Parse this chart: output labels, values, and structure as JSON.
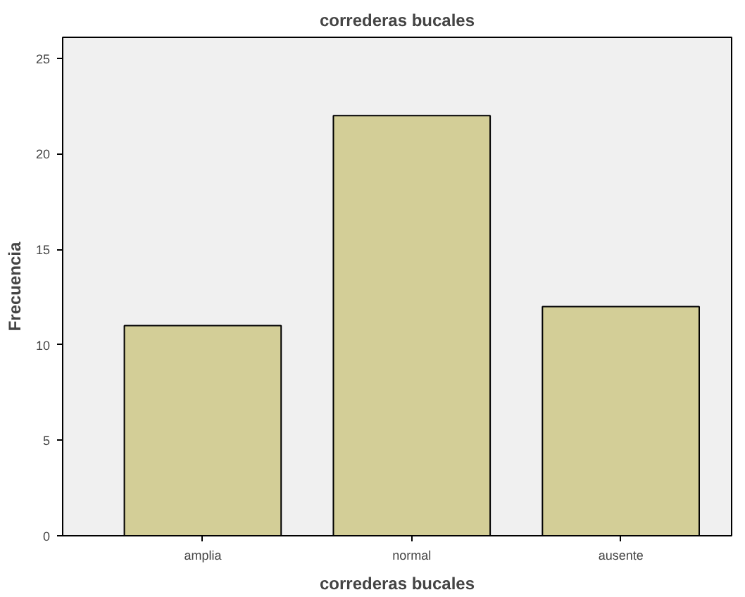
{
  "chart_data": {
    "type": "bar",
    "title": "correderas bucales",
    "xlabel": "correderas bucales",
    "ylabel": "Frecuencia",
    "categories": [
      "amplia",
      "normal",
      "ausente"
    ],
    "values": [
      11,
      22,
      12
    ],
    "color": "#d3ce97",
    "ylim": [
      0,
      26.1
    ],
    "yticks": [
      0,
      5,
      10,
      15,
      20,
      25
    ],
    "grid": false
  }
}
